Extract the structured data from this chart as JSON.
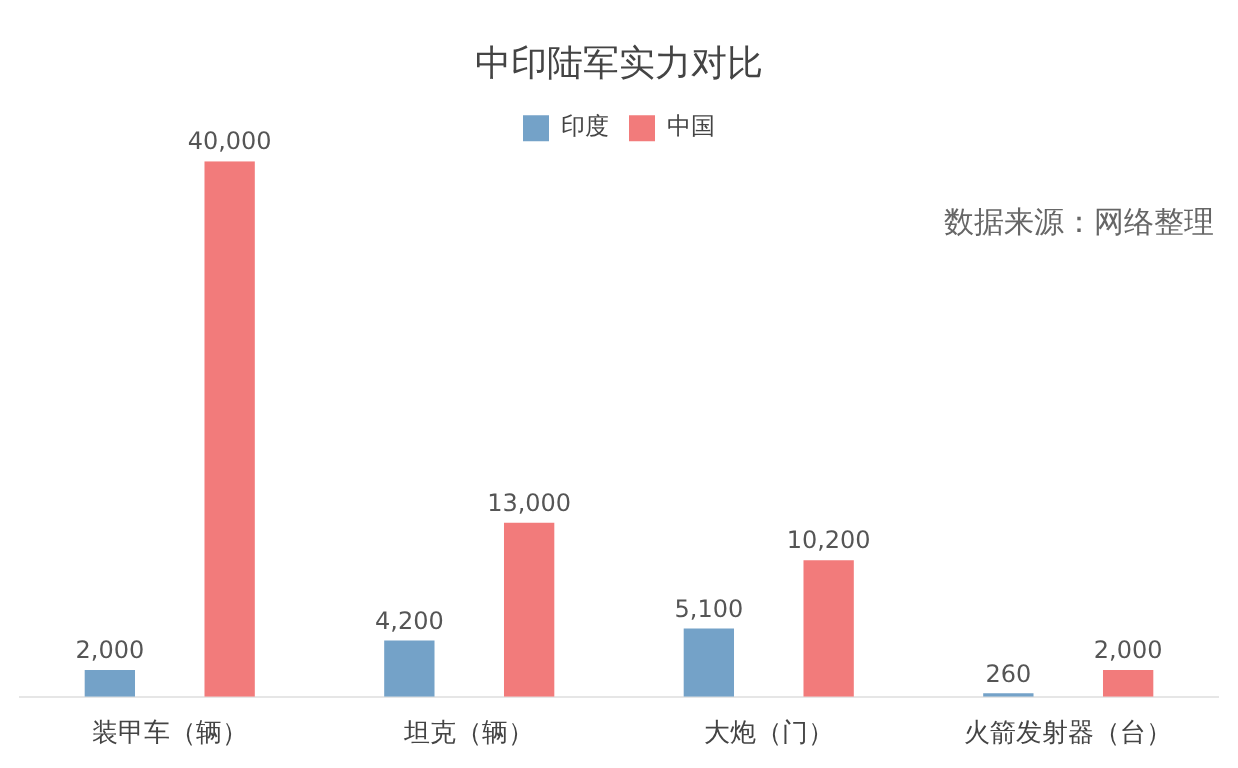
{
  "chart_data": {
    "type": "bar",
    "title": "中印陆军实力对比",
    "categories": [
      "装甲车（辆）",
      "坦克（辆）",
      "大炮（门）",
      "火箭发射器（台）"
    ],
    "series": [
      {
        "name": "印度",
        "color": "#74a2c8",
        "values": [
          2000,
          4200,
          5100,
          260
        ],
        "value_labels": [
          "2,000",
          "4,200",
          "5,100",
          "260"
        ]
      },
      {
        "name": "中国",
        "color": "#f27b7b",
        "values": [
          40000,
          13000,
          10200,
          2000
        ],
        "value_labels": [
          "40,000",
          "13,000",
          "10,200",
          "2,000"
        ]
      }
    ],
    "legend": "top",
    "grid": false,
    "annotations": [
      "数据来源：网络整理"
    ]
  }
}
